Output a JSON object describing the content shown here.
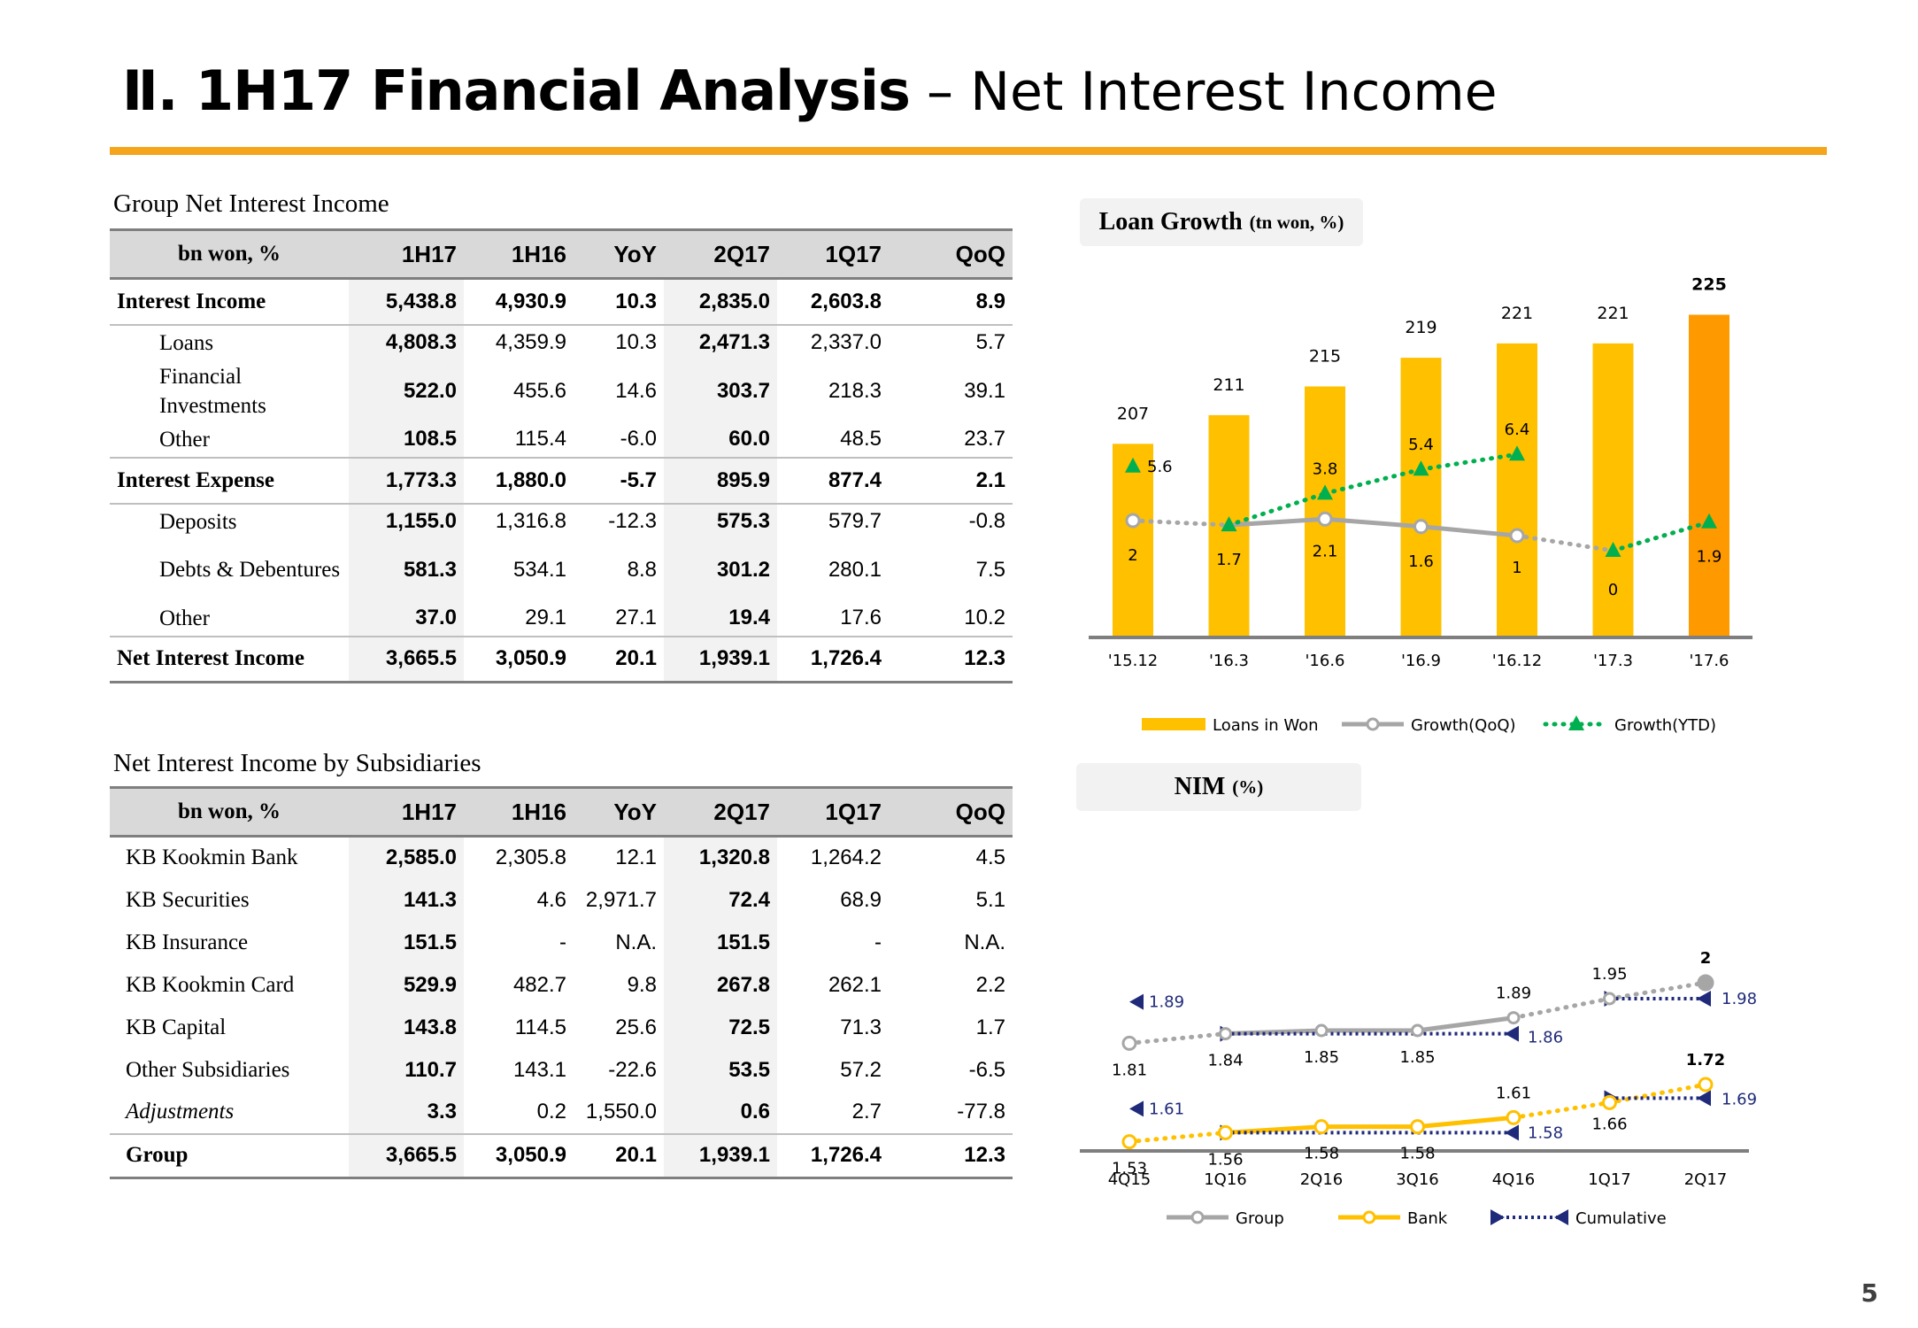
{
  "header": {
    "title_bold": "Ⅱ. 1H17 Financial Analysis",
    "title_rest": " – Net Interest Income"
  },
  "table1": {
    "title": "Group Net Interest Income",
    "headers": [
      "bn won, %",
      "1H17",
      "1H16",
      "YoY",
      "2Q17",
      "1Q17",
      "QoQ"
    ],
    "rows": [
      {
        "label": "Interest Income",
        "values": [
          "5,438.8",
          "4,930.9",
          "10.3",
          "2,835.0",
          "2,603.8",
          "8.9"
        ]
      },
      {
        "label": "Loans",
        "values": [
          "4,808.3",
          "4,359.9",
          "10.3",
          "2,471.3",
          "2,337.0",
          "5.7"
        ]
      },
      {
        "label": "Financial Investments",
        "values": [
          "522.0",
          "455.6",
          "14.6",
          "303.7",
          "218.3",
          "39.1"
        ]
      },
      {
        "label": "Other",
        "values": [
          "108.5",
          "115.4",
          "-6.0",
          "60.0",
          "48.5",
          "23.7"
        ]
      },
      {
        "label": "Interest Expense",
        "values": [
          "1,773.3",
          "1,880.0",
          "-5.7",
          "895.9",
          "877.4",
          "2.1"
        ]
      },
      {
        "label": "Deposits",
        "values": [
          "1,155.0",
          "1,316.8",
          "-12.3",
          "575.3",
          "579.7",
          "-0.8"
        ]
      },
      {
        "label": "Debts & Debentures",
        "values": [
          "581.3",
          "534.1",
          "8.8",
          "301.2",
          "280.1",
          "7.5"
        ]
      },
      {
        "label": "Other",
        "values": [
          "37.0",
          "29.1",
          "27.1",
          "19.4",
          "17.6",
          "10.2"
        ]
      },
      {
        "label": "Net Interest Income",
        "values": [
          "3,665.5",
          "3,050.9",
          "20.1",
          "1,939.1",
          "1,726.4",
          "12.3"
        ]
      }
    ]
  },
  "table2": {
    "title": "Net Interest Income by Subsidiaries",
    "headers": [
      "bn won, %",
      "1H17",
      "1H16",
      "YoY",
      "2Q17",
      "1Q17",
      "QoQ"
    ],
    "rows": [
      {
        "label": "KB Kookmin Bank",
        "values": [
          "2,585.0",
          "2,305.8",
          "12.1",
          "1,320.8",
          "1,264.2",
          "4.5"
        ]
      },
      {
        "label": "KB Securities",
        "values": [
          "141.3",
          "4.6",
          "2,971.7",
          "72.4",
          "68.9",
          "5.1"
        ]
      },
      {
        "label": "KB Insurance",
        "values": [
          "151.5",
          "-",
          "N.A.",
          "151.5",
          "-",
          "N.A."
        ]
      },
      {
        "label": "KB Kookmin Card",
        "values": [
          "529.9",
          "482.7",
          "9.8",
          "267.8",
          "262.1",
          "2.2"
        ]
      },
      {
        "label": "KB Capital",
        "values": [
          "143.8",
          "114.5",
          "25.6",
          "72.5",
          "71.3",
          "1.7"
        ]
      },
      {
        "label": "Other Subsidiaries",
        "values": [
          "110.7",
          "143.1",
          "-22.6",
          "53.5",
          "57.2",
          "-6.5"
        ]
      },
      {
        "label": "Adjustments",
        "values": [
          "3.3",
          "0.2",
          "1,550.0",
          "0.6",
          "2.7",
          "-77.8"
        ]
      },
      {
        "label": "Group",
        "values": [
          "3,665.5",
          "3,050.9",
          "20.1",
          "1,939.1",
          "1,726.4",
          "12.3"
        ]
      }
    ]
  },
  "loan_chart_label": {
    "main": "Loan Growth",
    "unit": "(tn won, %)"
  },
  "nim_chart_label": {
    "main": "NIM",
    "unit": "(%)"
  },
  "page_number": "5",
  "colors": {
    "accent_orange": "#f4a51c",
    "bar_yellow": "#ffc000",
    "bar_last": "#ff9900",
    "qoq_grey": "#a6a6a6",
    "ytd_green": "#00b050",
    "bank_yellow": "#ffc000",
    "cumulative_navy": "#1f2a7a"
  },
  "chart_data": [
    {
      "type": "bar",
      "title": "Loan Growth (tn won, %)",
      "categories": [
        "'15.12",
        "'16.3",
        "'16.6",
        "'16.9",
        "'16.12",
        "'17.3",
        "'17.6"
      ],
      "series": [
        {
          "name": "Loans in Won",
          "values": [
            207,
            211,
            215,
            219,
            221,
            221,
            225
          ]
        },
        {
          "name": "Growth(QoQ)",
          "values": [
            2.0,
            1.7,
            2.1,
            1.6,
            1.0,
            0.0,
            1.9
          ]
        },
        {
          "name": "Growth(YTD)",
          "values": [
            5.6,
            1.7,
            3.8,
            5.4,
            6.4,
            0.0,
            1.9
          ]
        }
      ],
      "legend": [
        "Loans in Won",
        "Growth(QoQ)",
        "Growth(YTD)"
      ],
      "legend_position": "bottom"
    },
    {
      "type": "line",
      "title": "NIM (%)",
      "categories": [
        "4Q15",
        "1Q16",
        "2Q16",
        "3Q16",
        "4Q16",
        "1Q17",
        "2Q17"
      ],
      "series": [
        {
          "name": "Group",
          "values": [
            1.81,
            1.84,
            1.85,
            1.85,
            1.89,
            1.95,
            2.0
          ]
        },
        {
          "name": "Bank",
          "values": [
            1.53,
            1.56,
            1.58,
            1.58,
            1.61,
            1.66,
            1.72
          ]
        },
        {
          "name": "Cumulative",
          "group": [
            1.89,
            1.86,
            1.98
          ],
          "bank": [
            1.61,
            1.58,
            1.69
          ]
        }
      ],
      "legend": [
        "Group",
        "Bank",
        "Cumulative"
      ],
      "legend_position": "bottom"
    }
  ]
}
